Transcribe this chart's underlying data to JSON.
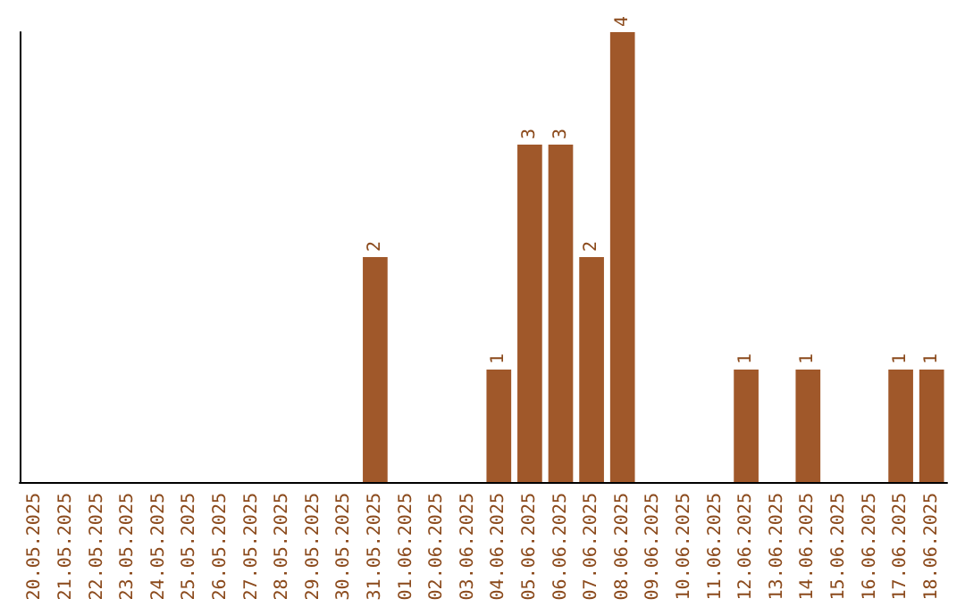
{
  "chart_data": {
    "type": "bar",
    "categories": [
      "20.05.2025",
      "21.05.2025",
      "22.05.2025",
      "23.05.2025",
      "24.05.2025",
      "25.05.2025",
      "26.05.2025",
      "27.05.2025",
      "28.05.2025",
      "29.05.2025",
      "30.05.2025",
      "31.05.2025",
      "01.06.2025",
      "02.06.2025",
      "03.06.2025",
      "04.06.2025",
      "05.06.2025",
      "06.06.2025",
      "07.06.2025",
      "08.06.2025",
      "09.06.2025",
      "10.06.2025",
      "11.06.2025",
      "12.06.2025",
      "13.06.2025",
      "14.06.2025",
      "15.06.2025",
      "16.06.2025",
      "17.06.2025",
      "18.06.2025"
    ],
    "values": [
      0,
      0,
      0,
      0,
      0,
      0,
      0,
      0,
      0,
      0,
      0,
      2,
      0,
      0,
      0,
      1,
      3,
      3,
      2,
      4,
      0,
      0,
      0,
      1,
      0,
      1,
      0,
      0,
      1,
      1
    ],
    "value_labels": [
      null,
      null,
      null,
      null,
      null,
      null,
      null,
      null,
      null,
      null,
      null,
      "2",
      null,
      null,
      null,
      "1",
      "3",
      "3",
      "2",
      "4",
      null,
      null,
      null,
      "1",
      null,
      "1",
      null,
      null,
      "1",
      "1"
    ],
    "color": "#a0582a",
    "tick_labels": "x"
  }
}
